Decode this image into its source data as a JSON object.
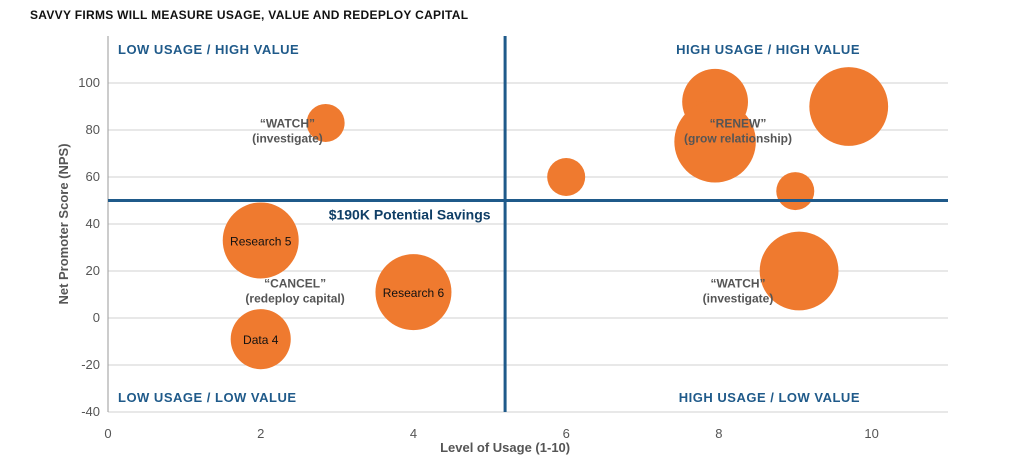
{
  "page_title": "SAVVY FIRMS WILL MEASURE USAGE, VALUE AND REDEPLOY CAPITAL",
  "colors": {
    "bubble": "#ef7a2f",
    "divider": "#1f5a8a",
    "quadrant_text": "#1f5a8a",
    "savings_text": "#0f3e66",
    "grid": "#d0d0d0"
  },
  "chart_data": {
    "type": "scatter",
    "title": "SAVVY FIRMS WILL MEASURE USAGE, VALUE AND REDEPLOY CAPITAL",
    "xlabel": "Level of Usage (1-10)",
    "ylabel": "Net Promoter Score (NPS)",
    "xlim": [
      0,
      11
    ],
    "ylim": [
      -40,
      120
    ],
    "x_ticks": [
      0,
      2,
      4,
      6,
      8,
      10
    ],
    "y_ticks": [
      -40,
      -20,
      0,
      20,
      40,
      60,
      80,
      100
    ],
    "grid": "horizontal",
    "divider_x": 5.2,
    "divider_y": 50,
    "quadrants": [
      {
        "label": "LOW USAGE / HIGH VALUE",
        "position": "top-left"
      },
      {
        "label": "HIGH USAGE / HIGH VALUE",
        "position": "top-right"
      },
      {
        "label": "LOW USAGE / LOW VALUE",
        "position": "bottom-left"
      },
      {
        "label": "HIGH USAGE / LOW VALUE",
        "position": "bottom-right"
      }
    ],
    "points": [
      {
        "x": 2.85,
        "y": 83,
        "size": 1,
        "label": ""
      },
      {
        "x": 2.0,
        "y": 33,
        "size": 4,
        "label": "Research 5"
      },
      {
        "x": 4.0,
        "y": 11,
        "size": 4,
        "label": "Research 6"
      },
      {
        "x": 2.0,
        "y": -9,
        "size": 2.5,
        "label": "Data 4"
      },
      {
        "x": 6.0,
        "y": 60,
        "size": 1,
        "label": ""
      },
      {
        "x": 7.95,
        "y": 92,
        "size": 3,
        "label": ""
      },
      {
        "x": 7.95,
        "y": 75,
        "size": 4.6,
        "label": ""
      },
      {
        "x": 9.7,
        "y": 90,
        "size": 4.3,
        "label": ""
      },
      {
        "x": 9.0,
        "y": 54,
        "size": 1,
        "label": ""
      },
      {
        "x": 9.05,
        "y": 20,
        "size": 4.3,
        "label": ""
      }
    ],
    "annotations": [
      {
        "lines": [
          "“WATCH”",
          "(investigate)"
        ],
        "x": 2.35,
        "y": 81
      },
      {
        "lines": [
          "“RENEW”",
          "(grow relationship)"
        ],
        "x": 8.25,
        "y": 81
      },
      {
        "lines": [
          "“CANCEL”",
          "(redeploy capital)"
        ],
        "x": 2.45,
        "y": 13
      },
      {
        "lines": [
          "“WATCH”",
          "(investigate)"
        ],
        "x": 8.25,
        "y": 13
      }
    ],
    "callout": {
      "text": "$190K Potential Savings",
      "x": 3.95,
      "y": 42
    }
  }
}
